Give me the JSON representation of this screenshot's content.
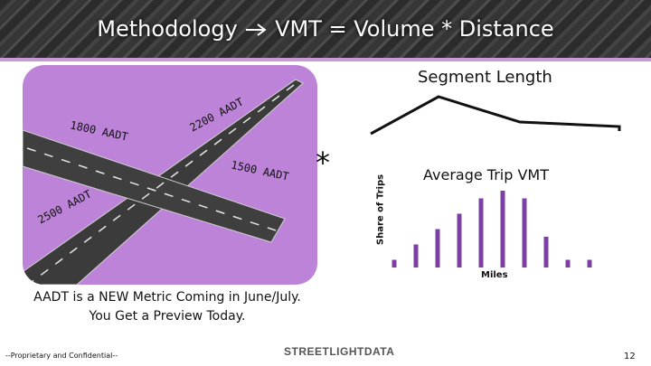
{
  "header": {
    "title_left": "Methodology",
    "title_right": "VMT = Volume * Distance"
  },
  "road_panel": {
    "labels": [
      "1800 AADT",
      "2200 AADT",
      "1500 AADT",
      "2500 AADT"
    ]
  },
  "operator": "*",
  "segment_length": {
    "label": "Segment Length"
  },
  "trip_chart": {
    "title": "Average Trip VMT",
    "ylabel": "Share of Trips",
    "xlabel": "Miles",
    "color": "#7b3fa6"
  },
  "chart_data": {
    "type": "bar",
    "title": "Average Trip VMT",
    "xlabel": "Miles",
    "ylabel": "Share of Trips",
    "values": [
      1,
      3,
      5,
      7,
      9,
      10,
      9,
      4,
      1,
      1
    ],
    "ylim": [
      0,
      10
    ]
  },
  "note": "AADT is a NEW Metric Coming in June/July. You Get a Preview Today.",
  "footer": {
    "confidential": "--Proprietary and Confidential--",
    "logo": "STREETLIGHTDATA",
    "page_number": "12"
  },
  "colors": {
    "panel": "#bd83d8",
    "accent": "#c99bd6",
    "bars": "#7b3fa6"
  }
}
